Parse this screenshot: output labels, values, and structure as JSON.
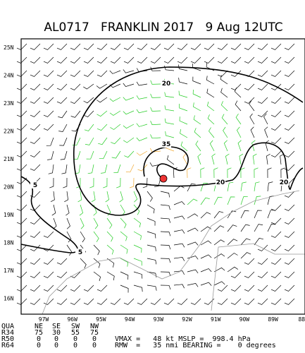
{
  "header": {
    "title": "AL0717   FRANKLIN 2017   9 Aug 12UTC"
  },
  "map": {
    "lat_labels": [
      "25N",
      "24N",
      "23N",
      "22N",
      "21N",
      "20N",
      "19N",
      "18N",
      "17N",
      "16N"
    ],
    "lon_labels": [
      "97W",
      "96W",
      "95W",
      "94W",
      "93W",
      "92W",
      "91W",
      "90W",
      "89W",
      "88"
    ],
    "contour_labels": [
      "20",
      "35",
      "20",
      "20",
      "5",
      "5"
    ]
  },
  "table": {
    "header": [
      "QUA",
      "NE",
      "SE",
      "SW",
      "NW"
    ],
    "rows": [
      [
        "R34",
        "75",
        "30",
        "55",
        "75"
      ],
      [
        "R50",
        "0",
        "0",
        "0",
        "0"
      ],
      [
        "R64",
        "0",
        "0",
        "0",
        "0"
      ]
    ]
  },
  "info": [
    "VMAX =   48 kt MSLP =  998.4 hPa",
    "RMW  =   35 nmi BEARING =    0 degrees"
  ]
}
